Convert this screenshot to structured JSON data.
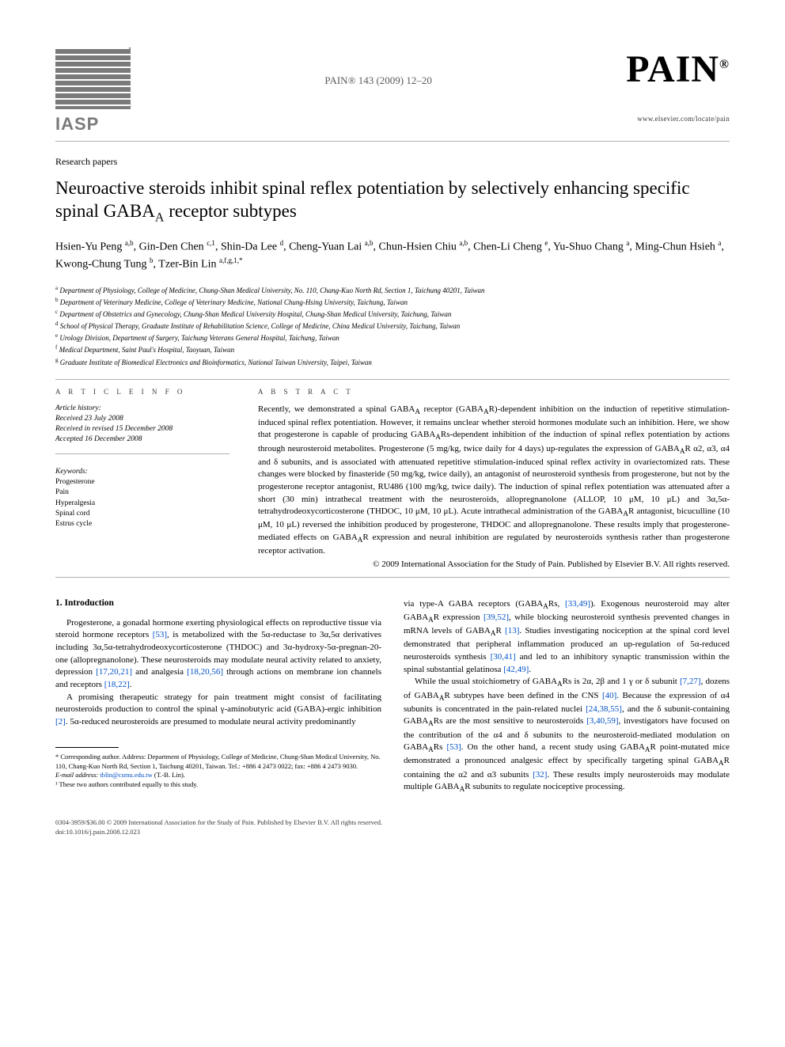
{
  "header": {
    "iasp_label": "IASP",
    "journal_ref": "PAIN® 143 (2009) 12–20",
    "pain_logo": "PAIN",
    "locate_url": "www.elsevier.com/locate/pain"
  },
  "article": {
    "type": "Research papers",
    "title_pre": "Neuroactive steroids inhibit spinal reflex potentiation by selectively enhancing specific spinal GABA",
    "title_sub": "A",
    "title_post": " receptor subtypes",
    "authors_html": "Hsien-Yu Peng <sup>a,b</sup>, Gin-Den Chen <sup>c,1</sup>, Shin-Da Lee <sup>d</sup>, Cheng-Yuan Lai <sup>a,b</sup>, Chun-Hsien Chiu <sup>a,b</sup>, Chen-Li Cheng <sup>e</sup>, Yu-Shuo Chang <sup>a</sup>, Ming-Chun Hsieh <sup>a</sup>, Kwong-Chung Tung <sup>b</sup>, Tzer-Bin Lin <sup>a,f,g,1,*</sup>",
    "affiliations": [
      {
        "sup": "a",
        "text": "Department of Physiology, College of Medicine, Chung-Shan Medical University, No. 110, Chang-Kuo North Rd, Section 1, Taichung 40201, Taiwan"
      },
      {
        "sup": "b",
        "text": "Department of Veterinary Medicine, College of Veterinary Medicine, National Chung-Hsing University, Taichung, Taiwan"
      },
      {
        "sup": "c",
        "text": "Department of Obstetrics and Gynecology, Chung-Shan Medical University Hospital, Chung-Shan Medical University, Taichung, Taiwan"
      },
      {
        "sup": "d",
        "text": "School of Physical Therapy, Graduate Institute of Rehabilitation Science, College of Medicine, China Medical University, Taichung, Taiwan"
      },
      {
        "sup": "e",
        "text": "Urology Division, Department of Surgery, Taichung Veterans General Hospital, Taichung, Taiwan"
      },
      {
        "sup": "f",
        "text": "Medical Department, Saint Paul's Hospital, Taoyuan, Taiwan"
      },
      {
        "sup": "g",
        "text": "Graduate Institute of Biomedical Electronics and Bioinformatics, National Taiwan University, Taipei, Taiwan"
      }
    ]
  },
  "info": {
    "heading": "A R T I C L E   I N F O",
    "history_label": "Article history:",
    "received": "Received 23 July 2008",
    "revised": "Received in revised 15 December 2008",
    "accepted": "Accepted 16 December 2008",
    "keywords_label": "Keywords:",
    "keywords": [
      "Progesterone",
      "Pain",
      "Hyperalgesia",
      "Spinal cord",
      "Estrus cycle"
    ]
  },
  "abstract": {
    "heading": "A B S T R A C T",
    "text": "Recently, we demonstrated a spinal GABA_A receptor (GABA_AR)-dependent inhibition on the induction of repetitive stimulation-induced spinal reflex potentiation. However, it remains unclear whether steroid hormones modulate such an inhibition. Here, we show that progesterone is capable of producing GABA_ARs-dependent inhibition of the induction of spinal reflex potentiation by actions through neurosteroid metabolites. Progesterone (5 mg/kg, twice daily for 4 days) up-regulates the expression of GABA_AR α2, α3, α4 and δ subunits, and is associated with attenuated repetitive stimulation-induced spinal reflex activity in ovariectomized rats. These changes were blocked by finasteride (50 mg/kg, twice daily), an antagonist of neurosteroid synthesis from progesterone, but not by the progesterone receptor antagonist, RU486 (100 mg/kg, twice daily). The induction of spinal reflex potentiation was attenuated after a short (30 min) intrathecal treatment with the neurosteroids, allopregnanolone (ALLOP, 10 μM, 10 μL) and 3α,5α-tetrahydrodeoxycorticosterone (THDOC, 10 μM, 10 μL). Acute intrathecal administration of the GABA_AR antagonist, bicuculline (10 μM, 10 μL) reversed the inhibition produced by progesterone, THDOC and allopregnanolone. These results imply that progesterone-mediated effects on GABA_AR expression and neural inhibition are regulated by neurosteroids synthesis rather than progesterone receptor activation.",
    "copyright": "© 2009 International Association for the Study of Pain. Published by Elsevier B.V. All rights reserved."
  },
  "body": {
    "section_heading": "1. Introduction",
    "left_p1": "Progesterone, a gonadal hormone exerting physiological effects on reproductive tissue via steroid hormone receptors [53], is metabolized with the 5α-reductase to 3α,5α derivatives including 3α,5α-tetrahydrodeoxycorticosterone (THDOC) and 3α-hydroxy-5α-pregnan-20-one (allopregnanolone). These neurosteroids may modulate neural activity related to anxiety, depression [17,20,21] and analgesia [18,20,56] through actions on membrane ion channels and receptors [18,22].",
    "left_p2": "A promising therapeutic strategy for pain treatment might consist of facilitating neurosteroids production to control the spinal γ-aminobutyric acid (GABA)-ergic inhibition [2]. 5α-reduced neurosteroids are presumed to modulate neural activity predominantly",
    "right_p1": "via type-A GABA receptors (GABA_ARs, [33,49]). Exogenous neurosteroid may alter GABA_AR expression [39,52], while blocking neurosteroid synthesis prevented changes in mRNA levels of GABA_AR [13]. Studies investigating nociception at the spinal cord level demonstrated that peripheral inflammation produced an up-regulation of 5α-reduced neurosteroids synthesis [30,41] and led to an inhibitory synaptic transmission within the spinal substantial gelatinosa [42,49].",
    "right_p2": "While the usual stoichiometry of GABA_ARs is 2α, 2β and 1 γ or δ subunit [7,27], dozens of GABA_AR subtypes have been defined in the CNS [40]. Because the expression of α4 subunits is concentrated in the pain-related nuclei [24,38,55], and the δ subunit-containing GABA_ARs are the most sensitive to neurosteroids [3,40,59], investigators have focused on the contribution of the α4 and δ subunits to the neurosteroid-mediated modulation on GABA_ARs [53]. On the other hand, a recent study using GABA_AR point-mutated mice demonstrated a pronounced analgesic effect by specifically targeting spinal GABA_AR containing the α2 and α3 subunits [32]. These results imply neurosteroids may modulate multiple GABA_AR subunits to regulate nociceptive processing."
  },
  "footnotes": {
    "corr": "* Corresponding author. Address: Department of Physiology, College of Medicine, Chung-Shan Medical University, No. 110, Chang-Kuo North Rd, Section 1, Taichung 40201, Taiwan. Tel.: +886 4 2473 0022; fax: +886 4 2473 9030.",
    "email_label": "E-mail address:",
    "email": "tblin@csmu.edu.tw",
    "email_who": " (T.-B. Lin).",
    "equal": "¹ These two authors contributed equally to this study."
  },
  "footer": {
    "line1": "0304-3959/$36.00 © 2009 International Association for the Study of Pain. Published by Elsevier B.V. All rights reserved.",
    "line2": "doi:10.1016/j.pain.2008.12.023"
  },
  "refs": {
    "r53": "[53]",
    "r17": "[17,20,21]",
    "r18a": "[18,20,56]",
    "r18b": "[18,22]",
    "r2": "[2]",
    "r33": "[33,49]",
    "r39": "[39,52]",
    "r13": "[13]",
    "r30": "[30,41]",
    "r42": "[42,49]",
    "r7": "[7,27]",
    "r40": "[40]",
    "r24": "[24,38,55]",
    "r3": "[3,40,59]",
    "r53b": "[53]",
    "r32": "[32]"
  },
  "style": {
    "link_color": "#0050c8",
    "text_color": "#000000",
    "rule_color": "#b0b0b0",
    "iasp_gray": "#7a7a7a",
    "body_font_size_pt": 11,
    "title_font_size_pt": 23,
    "author_font_size_pt": 14,
    "aff_font_size_pt": 9,
    "footnote_font_size_pt": 8.5
  }
}
